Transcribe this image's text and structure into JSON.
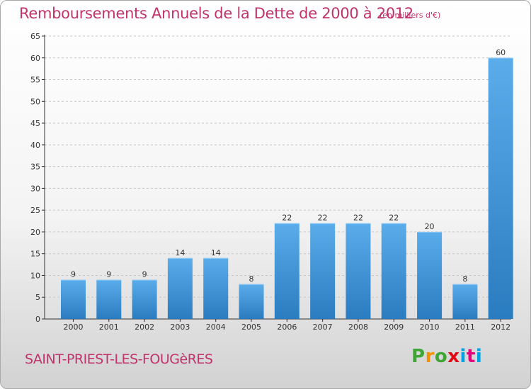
{
  "title": "Remboursements Annuels de la Dette de 2000 à 2012",
  "subtitle": "(en milliers d'€)",
  "location": "SAINT-PRIEST-LES-FOUGèRES",
  "logo": {
    "letters": [
      {
        "char": "P",
        "color": "#3fa535"
      },
      {
        "char": "r",
        "color": "#f39200"
      },
      {
        "char": "o",
        "color": "#3fa535"
      },
      {
        "char": "x",
        "color": "#e30613"
      },
      {
        "char": "i",
        "color": "#00a0e3"
      },
      {
        "char": "t",
        "color": "#e6007e"
      },
      {
        "char": "i",
        "color": "#00a0e3"
      }
    ]
  },
  "colors": {
    "bar_light": "#5aacea",
    "bar_dark": "#2a7cc0",
    "title": "#c0336b",
    "axis": "#333333"
  },
  "chart_data": {
    "type": "bar",
    "categories": [
      "2000",
      "2001",
      "2002",
      "2003",
      "2004",
      "2005",
      "2006",
      "2007",
      "2008",
      "2009",
      "2010",
      "2011",
      "2012"
    ],
    "values": [
      9,
      9,
      9,
      14,
      14,
      8,
      22,
      22,
      22,
      22,
      20,
      8,
      60
    ],
    "data_labels": [
      "9",
      "9",
      "9",
      "14",
      "14",
      "8",
      "22",
      "22",
      "22",
      "22",
      "20",
      "8",
      "60"
    ],
    "yticks": [
      0,
      5,
      10,
      15,
      20,
      25,
      30,
      35,
      40,
      45,
      50,
      55,
      60,
      65
    ],
    "ylim": [
      0,
      65
    ],
    "grid": "horizontal dashed"
  }
}
